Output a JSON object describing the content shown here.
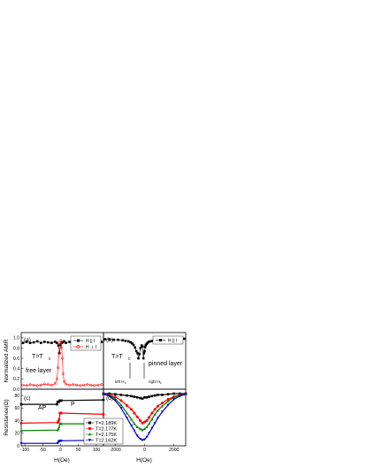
{
  "figure": {
    "ylabel_top": "Normalized AMR",
    "ylabel_bottom": "Resistance(Ω)",
    "xlabel_left": "H(Oe)",
    "xlabel_right": "H(Oe)"
  },
  "colors": {
    "black": "#000000",
    "red": "#ff0000",
    "green": "#008000",
    "blue": "#0000cc"
  },
  "chart_data": [
    {
      "panel": "(a)",
      "type": "scatter",
      "xlim": [
        -110,
        120
      ],
      "ylim": [
        0,
        1.1
      ],
      "xticks": [],
      "yticks": [
        "0.0",
        "0.2",
        "0.4",
        "0.6",
        "0.8",
        "1.0"
      ],
      "annotations": [
        "T>T",
        "c",
        "free layer"
      ],
      "legend": {
        "placement": "top-right",
        "entries": [
          "H || I",
          "H ⊥ I"
        ]
      },
      "series": [
        {
          "name": "H || I",
          "color": "#000000",
          "x": [
            -105,
            -95,
            -85,
            -75,
            -65,
            -55,
            -45,
            -35,
            -25,
            -15,
            -10,
            -6,
            -3,
            0,
            3,
            6,
            10,
            15,
            25,
            35,
            45,
            55,
            65,
            75,
            85,
            95,
            105,
            115
          ],
          "y": [
            0.9,
            0.92,
            0.9,
            0.91,
            0.93,
            0.9,
            0.92,
            0.91,
            0.9,
            0.92,
            0.9,
            0.85,
            0.7,
            0.86,
            0.9,
            0.91,
            0.93,
            0.9,
            0.92,
            0.91,
            0.9,
            0.92,
            0.91,
            0.93,
            0.9,
            0.92,
            0.91,
            0.92
          ]
        },
        {
          "name": "H ⊥ I",
          "color": "#ff0000",
          "x": [
            -105,
            -95,
            -85,
            -75,
            -65,
            -55,
            -45,
            -35,
            -25,
            -15,
            -10,
            -7,
            -5,
            -3,
            -1,
            1,
            3,
            5,
            7,
            10,
            15,
            25,
            35,
            45,
            55,
            65,
            75,
            85,
            95,
            105,
            115
          ],
          "y": [
            0.08,
            0.07,
            0.09,
            0.08,
            0.07,
            0.08,
            0.1,
            0.09,
            0.08,
            0.11,
            0.2,
            0.42,
            0.7,
            0.9,
            0.86,
            0.95,
            0.8,
            0.6,
            0.3,
            0.15,
            0.1,
            0.08,
            0.09,
            0.08,
            0.07,
            0.08,
            0.09,
            0.08,
            0.07,
            0.08,
            0.09
          ]
        }
      ]
    },
    {
      "panel": "(b)",
      "type": "scatter",
      "xlim": [
        -2800,
        2800
      ],
      "ylim": [
        0,
        1.1
      ],
      "xticks": [],
      "yticks": [],
      "annotations": [
        "T>T",
        "c",
        "pinned layer",
        "left H",
        "c",
        "right H",
        "c"
      ],
      "legend": {
        "placement": "top-right",
        "entries": [
          "H || I"
        ]
      },
      "series": [
        {
          "name": "H || I",
          "color": "#000000",
          "x": [
            -2700,
            -2400,
            -2100,
            -1800,
            -1500,
            -1300,
            -1100,
            -950,
            -850,
            -750,
            -650,
            -560,
            -480,
            -420,
            -350,
            -280,
            -200,
            -140,
            -80,
            -40,
            0,
            40,
            80,
            140,
            200,
            280,
            400,
            550,
            700,
            900,
            1100,
            1300,
            1500,
            1800,
            2100,
            2400,
            2700
          ],
          "y": [
            0.97,
            0.97,
            0.96,
            0.96,
            0.95,
            0.94,
            0.93,
            0.91,
            0.89,
            0.86,
            0.81,
            0.74,
            0.7,
            0.6,
            0.68,
            0.8,
            0.85,
            0.83,
            0.6,
            0.7,
            0.74,
            0.82,
            0.86,
            0.88,
            0.9,
            0.92,
            0.93,
            0.94,
            0.95,
            0.96,
            0.96,
            0.97,
            0.97,
            0.97,
            0.98,
            0.98,
            0.98
          ]
        }
      ]
    },
    {
      "panel": "(c)",
      "type": "line",
      "xlim": [
        -110,
        120
      ],
      "ylim": [
        0,
        90
      ],
      "xticks": [
        "-100",
        "-50",
        "0",
        "50",
        "100"
      ],
      "yticks": [
        "0",
        "20",
        "40",
        "60",
        "80"
      ],
      "annotations": [
        "AP",
        "P"
      ],
      "legend": {
        "placement": "bottom-right",
        "entries": [
          "T=2.189K",
          "T=2.177K",
          "T=2.175K",
          "T=2.162K"
        ]
      },
      "series": [
        {
          "name": "T=2.189K",
          "color": "#000000",
          "x": [
            -110,
            -10,
            -8,
            -6,
            -4,
            -2,
            0,
            2,
            120
          ],
          "y": [
            66,
            66,
            70,
            70,
            70,
            72,
            72,
            72,
            73
          ]
        },
        {
          "name": "T=2.177K",
          "color": "#ff0000",
          "x": [
            -110,
            -8,
            -6,
            -4,
            -2,
            0,
            2,
            120
          ],
          "y": [
            36,
            37,
            39,
            42,
            52,
            52,
            52,
            50
          ]
        },
        {
          "name": "T=2.175K",
          "color": "#008000",
          "x": [
            -110,
            -8,
            -6,
            -4,
            -2,
            0,
            2,
            120
          ],
          "y": [
            24,
            25,
            27,
            30,
            35,
            35,
            35,
            35
          ]
        },
        {
          "name": "T=2.162K",
          "color": "#0000cc",
          "x": [
            -110,
            -8,
            -6,
            -4,
            -2,
            0,
            2,
            120
          ],
          "y": [
            4,
            4,
            6,
            7,
            8,
            8,
            8,
            9
          ]
        }
      ]
    },
    {
      "panel": "(d)",
      "type": "line",
      "xlim": [
        -2800,
        2800
      ],
      "ylim": [
        0,
        90
      ],
      "xticks": [
        "-2000",
        "0",
        "2000"
      ],
      "yticks": [],
      "annotations": [],
      "series": [
        {
          "name": "T=2.189K",
          "color": "#000000",
          "x": [
            -2800,
            -2400,
            -2000,
            -1600,
            -1200,
            -900,
            -700,
            -500,
            -300,
            -150,
            0,
            150,
            300,
            500,
            700,
            900,
            1200,
            1600,
            2000,
            2400,
            2800
          ],
          "y": [
            83,
            83,
            82,
            81,
            80,
            79,
            78,
            77,
            76,
            75,
            77,
            77,
            78,
            79,
            80,
            81,
            81,
            82,
            83,
            83,
            83
          ]
        },
        {
          "name": "T=2.177K",
          "color": "#ff0000",
          "x": [
            -2800,
            -2400,
            -2000,
            -1600,
            -1200,
            -900,
            -700,
            -500,
            -300,
            -150,
            0,
            150,
            300,
            500,
            700,
            900,
            1200,
            1600,
            2000,
            2400,
            2800
          ],
          "y": [
            82,
            81,
            78,
            72,
            64,
            58,
            52,
            46,
            40,
            36,
            38,
            40,
            45,
            52,
            58,
            63,
            68,
            74,
            78,
            81,
            82
          ]
        },
        {
          "name": "T=2.175K",
          "color": "#008000",
          "x": [
            -2800,
            -2400,
            -2000,
            -1600,
            -1200,
            -900,
            -700,
            -500,
            -300,
            -150,
            0,
            150,
            300,
            500,
            700,
            900,
            1200,
            1600,
            2000,
            2400,
            2800
          ],
          "y": [
            82,
            80,
            75,
            65,
            52,
            42,
            35,
            30,
            27,
            25,
            27,
            30,
            35,
            42,
            50,
            56,
            63,
            71,
            77,
            80,
            82
          ]
        },
        {
          "name": "T=2.162K",
          "color": "#0000cc",
          "x": [
            -2800,
            -2400,
            -2000,
            -1600,
            -1200,
            -900,
            -700,
            -500,
            -300,
            -150,
            0,
            150,
            300,
            500,
            700,
            900,
            1200,
            1600,
            2000,
            2400,
            2800
          ],
          "y": [
            82,
            79,
            72,
            60,
            44,
            32,
            24,
            16,
            11,
            9,
            10,
            14,
            20,
            28,
            36,
            44,
            54,
            65,
            74,
            79,
            82
          ]
        }
      ]
    }
  ]
}
